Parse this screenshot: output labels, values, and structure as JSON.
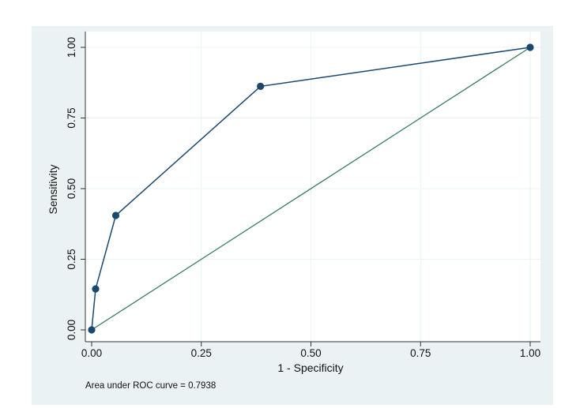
{
  "colors": {
    "outer_background": "#eaf2f3",
    "plot_background": "#ffffff",
    "grid": "#eaf2f3",
    "roc_line": "#1a476f",
    "reference_line": "#3a7d5a",
    "marker": "#1a476f"
  },
  "chart_data": {
    "type": "line",
    "xlabel": "1 - Specificity",
    "ylabel": "Sensitivity",
    "xlim": [
      0,
      1
    ],
    "ylim": [
      0,
      1
    ],
    "x_ticks": [
      0,
      0.25,
      0.5,
      0.75,
      1
    ],
    "y_ticks": [
      0,
      0.25,
      0.5,
      0.75,
      1
    ],
    "x_tick_labels": [
      "0.00",
      "0.25",
      "0.50",
      "0.75",
      "1.00"
    ],
    "y_tick_labels": [
      "0.00",
      "0.25",
      "0.50",
      "0.75",
      "1.00"
    ],
    "grid": true,
    "legend": "none",
    "series": [
      {
        "x": [
          0,
          0.009,
          0.055,
          0.385,
          1
        ],
        "y": [
          0,
          0.145,
          0.405,
          0.862,
          1
        ],
        "markers": true
      },
      {
        "x": [
          0,
          1
        ],
        "y": [
          0,
          1
        ],
        "markers": false
      }
    ],
    "note": "Area under ROC curve = 0.7938"
  }
}
